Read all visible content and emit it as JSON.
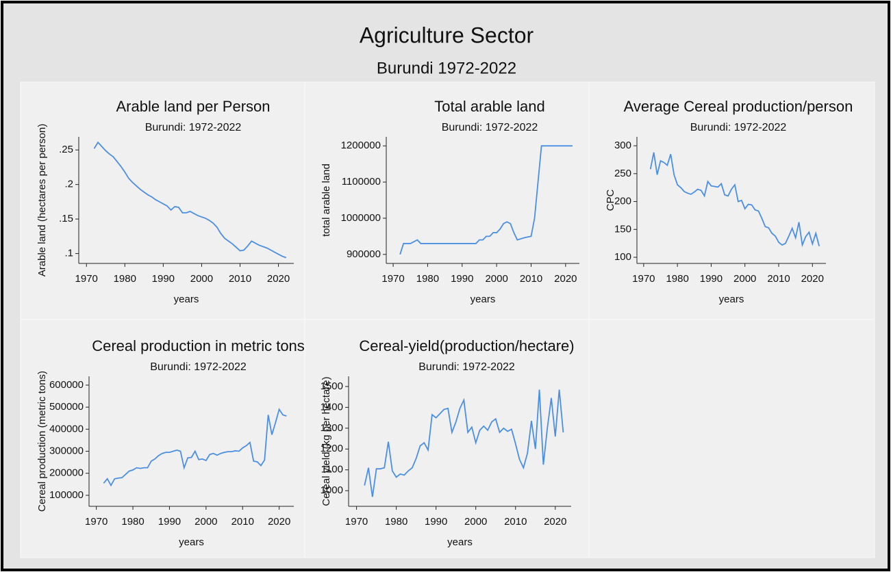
{
  "title": "Agriculture Sector",
  "subtitle": "Burundi 1972-2022",
  "chart_data": [
    {
      "type": "line",
      "title": "Arable land per Person",
      "subtitle": "Burundi: 1972-2022",
      "xlabel": "years",
      "ylabel": "Arable land (hectares per person)",
      "color": "#4a8fe3",
      "x": [
        1972,
        1973,
        1974,
        1975,
        1976,
        1977,
        1978,
        1979,
        1980,
        1981,
        1982,
        1983,
        1984,
        1985,
        1986,
        1987,
        1988,
        1989,
        1990,
        1991,
        1992,
        1993,
        1994,
        1995,
        1996,
        1997,
        1998,
        1999,
        2000,
        2001,
        2002,
        2003,
        2004,
        2005,
        2006,
        2007,
        2008,
        2009,
        2010,
        2011,
        2012,
        2013,
        2014,
        2015,
        2016,
        2017,
        2018,
        2019,
        2020,
        2021,
        2022
      ],
      "values": [
        0.252,
        0.261,
        0.255,
        0.249,
        0.244,
        0.24,
        0.233,
        0.226,
        0.218,
        0.209,
        0.203,
        0.198,
        0.193,
        0.189,
        0.185,
        0.182,
        0.178,
        0.175,
        0.172,
        0.169,
        0.163,
        0.168,
        0.167,
        0.159,
        0.159,
        0.161,
        0.158,
        0.155,
        0.153,
        0.151,
        0.148,
        0.144,
        0.138,
        0.129,
        0.122,
        0.118,
        0.114,
        0.109,
        0.104,
        0.105,
        0.111,
        0.118,
        0.115,
        0.112,
        0.11,
        0.108,
        0.105,
        0.102,
        0.099,
        0.096,
        0.094
      ],
      "xlim": [
        1968,
        2024
      ],
      "xticks": [
        1970,
        1980,
        1990,
        2000,
        2010,
        2020
      ],
      "ylim": [
        0.0857,
        0.269
      ],
      "yticks": [
        {
          "value": 0.25,
          "label": ".25"
        },
        {
          "value": 0.2,
          "label": ".2"
        },
        {
          "value": 0.15,
          "label": ".15"
        },
        {
          "value": 0.1,
          "label": ".1"
        }
      ]
    },
    {
      "type": "line",
      "title": "Total arable land",
      "subtitle": "Burundi: 1972-2022",
      "xlabel": "years",
      "ylabel": "total arable land",
      "color": "#4a8fe3",
      "x": [
        1972,
        1973,
        1974,
        1975,
        1976,
        1977,
        1978,
        1979,
        1980,
        1981,
        1982,
        1983,
        1984,
        1985,
        1986,
        1987,
        1988,
        1989,
        1990,
        1991,
        1992,
        1993,
        1994,
        1995,
        1996,
        1997,
        1998,
        1999,
        2000,
        2001,
        2002,
        2003,
        2004,
        2005,
        2006,
        2007,
        2008,
        2009,
        2010,
        2011,
        2012,
        2013,
        2014,
        2015,
        2016,
        2017,
        2018,
        2019,
        2020,
        2021,
        2022
      ],
      "values": [
        900000,
        930000,
        930000,
        930000,
        935000,
        940000,
        930000,
        930000,
        930000,
        930000,
        930000,
        930000,
        930000,
        930000,
        930000,
        930000,
        930000,
        930000,
        930000,
        930000,
        930000,
        930000,
        930000,
        940000,
        940000,
        950000,
        950000,
        960000,
        960000,
        970000,
        985000,
        990000,
        985000,
        960000,
        940000,
        943000,
        946000,
        948000,
        950000,
        1000000,
        1100000,
        1200000,
        1200000,
        1200000,
        1200000,
        1200000,
        1200000,
        1200000,
        1200000,
        1200000,
        1200000
      ],
      "xlim": [
        1968,
        2024
      ],
      "xticks": [
        1970,
        1980,
        1990,
        2000,
        2010,
        2020
      ],
      "ylim": [
        875000,
        1225000
      ],
      "yticks": [
        900000,
        1000000,
        1100000,
        1200000
      ]
    },
    {
      "type": "line",
      "title": "Average Cereal production/person",
      "subtitle": "Burundi: 1972-2022",
      "xlabel": "years",
      "ylabel": "CPC",
      "color": "#4a8fe3",
      "x": [
        1972,
        1973,
        1974,
        1975,
        1976,
        1977,
        1978,
        1979,
        1980,
        1981,
        1982,
        1983,
        1984,
        1985,
        1986,
        1987,
        1988,
        1989,
        1990,
        1991,
        1992,
        1993,
        1994,
        1995,
        1996,
        1997,
        1998,
        1999,
        2000,
        2001,
        2002,
        2003,
        2004,
        2005,
        2006,
        2007,
        2008,
        2009,
        2010,
        2011,
        2012,
        2013,
        2014,
        2015,
        2016,
        2017,
        2018,
        2019,
        2020,
        2021,
        2022
      ],
      "values": [
        258,
        288,
        248,
        273,
        270,
        265,
        285,
        248,
        230,
        225,
        218,
        215,
        213,
        217,
        222,
        220,
        210,
        236,
        228,
        227,
        226,
        232,
        212,
        210,
        222,
        230,
        200,
        202,
        187,
        195,
        194,
        185,
        183,
        170,
        155,
        153,
        143,
        138,
        127,
        122,
        125,
        138,
        152,
        135,
        163,
        122,
        137,
        145,
        124,
        143,
        120
      ],
      "xlim": [
        1968,
        2024
      ],
      "xticks": [
        1970,
        1980,
        1990,
        2000,
        2010,
        2020
      ],
      "ylim": [
        89,
        316
      ],
      "yticks": [
        100,
        150,
        200,
        250,
        300
      ]
    },
    {
      "type": "line",
      "title": "Cereal production in metric tons",
      "subtitle": "Burundi: 1972-2022",
      "xlabel": "years",
      "ylabel": "Cereal production (metric tons)",
      "color": "#4a8fe3",
      "x": [
        1972,
        1973,
        1974,
        1975,
        1976,
        1977,
        1978,
        1979,
        1980,
        1981,
        1982,
        1983,
        1984,
        1985,
        1986,
        1987,
        1988,
        1989,
        1990,
        1991,
        1992,
        1993,
        1994,
        1995,
        1996,
        1997,
        1998,
        1999,
        2000,
        2001,
        2002,
        2003,
        2004,
        2005,
        2006,
        2007,
        2008,
        2009,
        2010,
        2011,
        2012,
        2013,
        2014,
        2015,
        2016,
        2017,
        2018,
        2019,
        2020,
        2021,
        2022
      ],
      "values": [
        155000,
        175000,
        145000,
        175000,
        178000,
        180000,
        195000,
        210000,
        215000,
        225000,
        222000,
        225000,
        225000,
        255000,
        265000,
        280000,
        290000,
        295000,
        295000,
        300000,
        305000,
        300000,
        225000,
        270000,
        272000,
        300000,
        262000,
        265000,
        258000,
        285000,
        290000,
        282000,
        290000,
        295000,
        298000,
        298000,
        302000,
        300000,
        315000,
        325000,
        340000,
        255000,
        252000,
        235000,
        260000,
        465000,
        375000,
        430000,
        490000,
        465000,
        460000
      ],
      "xlim": [
        1968,
        2024
      ],
      "xticks": [
        1970,
        1980,
        1990,
        2000,
        2010,
        2020
      ],
      "ylim": [
        50000,
        640000
      ],
      "yticks": [
        100000,
        200000,
        300000,
        400000,
        500000,
        600000
      ]
    },
    {
      "type": "line",
      "title": "Cereal-yield(production/hectare)",
      "subtitle": "Burundi: 1972-2022",
      "xlabel": "years",
      "ylabel": "Cereal yield (kg per hectare)",
      "color": "#4a8fe3",
      "x": [
        1972,
        1973,
        1974,
        1975,
        1976,
        1977,
        1978,
        1979,
        1980,
        1981,
        1982,
        1983,
        1984,
        1985,
        1986,
        1987,
        1988,
        1989,
        1990,
        1991,
        1992,
        1993,
        1994,
        1995,
        1996,
        1997,
        1998,
        1999,
        2000,
        2001,
        2002,
        2003,
        2004,
        2005,
        2006,
        2007,
        2008,
        2009,
        2010,
        2011,
        2012,
        2013,
        2014,
        2015,
        2016,
        2017,
        2018,
        2019,
        2020,
        2021,
        2022
      ],
      "values": [
        1025,
        1110,
        970,
        1105,
        1105,
        1110,
        1235,
        1095,
        1065,
        1080,
        1075,
        1095,
        1110,
        1155,
        1215,
        1230,
        1195,
        1365,
        1350,
        1370,
        1390,
        1395,
        1280,
        1330,
        1395,
        1435,
        1280,
        1305,
        1230,
        1290,
        1310,
        1290,
        1330,
        1345,
        1280,
        1300,
        1285,
        1295,
        1225,
        1150,
        1110,
        1180,
        1335,
        1200,
        1485,
        1125,
        1300,
        1445,
        1260,
        1485,
        1280
      ],
      "xlim": [
        1968,
        2024
      ],
      "xticks": [
        1970,
        1980,
        1990,
        2000,
        2010,
        2020
      ],
      "ylim": [
        925,
        1549
      ],
      "yticks": [
        1000,
        1100,
        1200,
        1300,
        1400,
        1500
      ]
    }
  ]
}
